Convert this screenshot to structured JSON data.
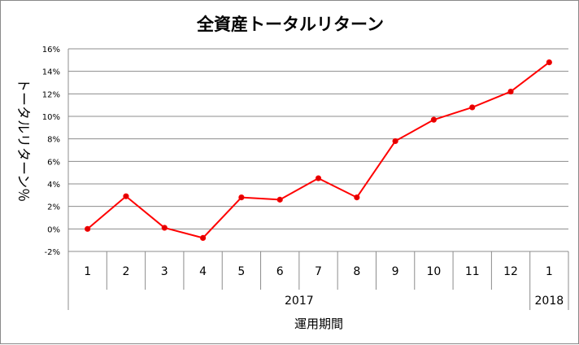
{
  "chart_data": {
    "type": "line",
    "title": "全資産トータルリターン",
    "xlabel": "運用期間",
    "ylabel": "トータルリターン％",
    "categories": [
      "1",
      "2",
      "3",
      "4",
      "5",
      "6",
      "7",
      "8",
      "9",
      "10",
      "11",
      "12",
      "1"
    ],
    "groups": [
      {
        "label": "2017",
        "count": 12
      },
      {
        "label": "2018",
        "count": 1
      }
    ],
    "series": [
      {
        "values": [
          0.0,
          2.9,
          0.1,
          -0.8,
          2.8,
          2.6,
          4.5,
          2.8,
          7.8,
          9.7,
          10.8,
          12.2,
          14.8
        ],
        "color": "#ff0000",
        "marker_color": "#e00000"
      }
    ],
    "yticks": [
      "16%",
      "14%",
      "12%",
      "10%",
      "8%",
      "6%",
      "4%",
      "2%",
      "0%",
      "-2%"
    ],
    "ylim": [
      -2,
      16
    ],
    "ystep": 2,
    "grid": true,
    "legend": "none",
    "grid_color": "#8c8c8c"
  }
}
